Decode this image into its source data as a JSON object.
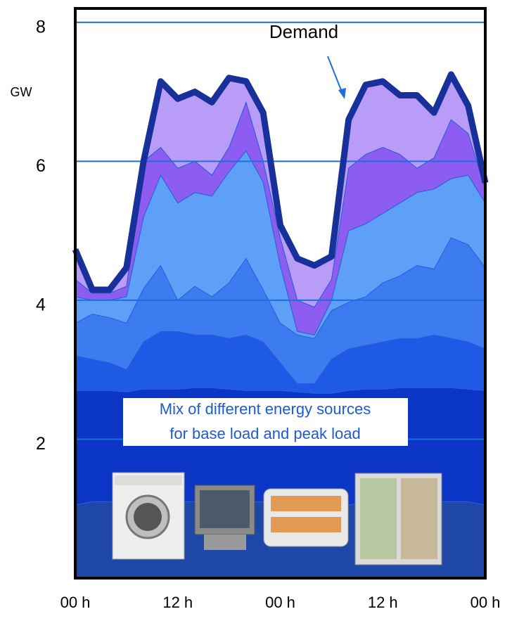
{
  "chart_data": {
    "type": "stacked-area",
    "y_label": "GW",
    "x": [
      0,
      2,
      4,
      6,
      8,
      10,
      12,
      14,
      16,
      18,
      20,
      22,
      24,
      26,
      28,
      30,
      32,
      34,
      36,
      38,
      40,
      42,
      44,
      46,
      48
    ],
    "xlim": [
      0,
      48
    ],
    "xticks": [
      {
        "value": 0,
        "label": "00 h"
      },
      {
        "value": 12,
        "label": "12 h"
      },
      {
        "value": 24,
        "label": "00 h"
      },
      {
        "value": 36,
        "label": "12 h"
      },
      {
        "value": 48,
        "label": "00 h"
      }
    ],
    "ylim": [
      0,
      8.2
    ],
    "yticks": [
      2,
      4,
      6,
      8
    ],
    "grid": true,
    "grid_color": "#1e6fd9",
    "series": [
      {
        "color": "#1e47a8",
        "values": [
          1.05,
          1.1,
          1.1,
          1.05,
          1.1,
          1.1,
          1.1,
          1.1,
          1.1,
          1.1,
          1.1,
          1.1,
          1.1,
          1.05,
          1.0,
          1.0,
          1.05,
          1.1,
          1.1,
          1.1,
          1.1,
          1.1,
          1.1,
          1.1,
          1.05
        ]
      },
      {
        "color": "#0b36c6",
        "values": [
          1.65,
          1.6,
          1.6,
          1.63,
          1.62,
          1.62,
          1.62,
          1.64,
          1.64,
          1.62,
          1.6,
          1.6,
          1.6,
          1.63,
          1.66,
          1.66,
          1.65,
          1.62,
          1.62,
          1.64,
          1.64,
          1.64,
          1.64,
          1.62,
          1.65
        ]
      },
      {
        "color": "#1f5ae6",
        "values": [
          0.5,
          0.45,
          0.4,
          0.32,
          0.68,
          0.83,
          0.83,
          0.76,
          0.76,
          0.73,
          0.8,
          0.7,
          0.4,
          0.12,
          0.14,
          0.49,
          0.6,
          0.63,
          0.68,
          0.71,
          0.71,
          0.76,
          0.71,
          0.68,
          0.6
        ]
      },
      {
        "color": "#3d7cf0",
        "values": [
          0.47,
          0.65,
          0.65,
          0.67,
          0.77,
          0.95,
          0.45,
          0.7,
          0.55,
          0.8,
          1.1,
          0.75,
          0.57,
          0.7,
          0.65,
          0.7,
          0.67,
          0.7,
          0.85,
          0.9,
          1.05,
          0.95,
          1.45,
          1.4,
          1.17
        ]
      },
      {
        "color": "#5e9ff8",
        "values": [
          0.38,
          0.2,
          0.25,
          0.38,
          1.03,
          1.3,
          1.4,
          1.35,
          1.45,
          1.6,
          1.55,
          1.55,
          0.83,
          0.05,
          0.05,
          0.15,
          1.03,
          1.05,
          1.0,
          1.05,
          1.05,
          1.15,
          0.85,
          1.0,
          0.93
        ]
      },
      {
        "color": "#8d5cf0",
        "values": [
          0.25,
          0.1,
          0.1,
          0.15,
          0.8,
          0.4,
          0.5,
          0.45,
          0.3,
          0.35,
          0.7,
          0.3,
          0.4,
          0.45,
          0.4,
          0.3,
          0.9,
          1.0,
          0.95,
          0.7,
          0.35,
          0.45,
          0.85,
          0.6,
          0.2
        ]
      },
      {
        "color": "#b99cf8",
        "values": [
          0.43,
          0.05,
          0.05,
          0.27,
          0.0,
          0.95,
          1.0,
          1.0,
          1.05,
          1.0,
          0.3,
          0.7,
          0.18,
          0.6,
          0.6,
          0.33,
          0.7,
          1.0,
          0.95,
          0.85,
          1.05,
          0.65,
          0.65,
          0.4,
          0.09
        ]
      }
    ],
    "demand": {
      "name": "Demand",
      "color": "#17309a",
      "values": [
        4.73,
        4.15,
        4.15,
        4.47,
        6.0,
        7.15,
        6.9,
        7.0,
        6.85,
        7.2,
        7.15,
        6.7,
        5.08,
        4.6,
        4.5,
        4.63,
        6.6,
        7.1,
        7.15,
        6.95,
        6.95,
        6.7,
        7.25,
        6.8,
        5.69
      ]
    },
    "annotation": [
      "Mix of different energy sources",
      "for base load and peak load"
    ]
  }
}
